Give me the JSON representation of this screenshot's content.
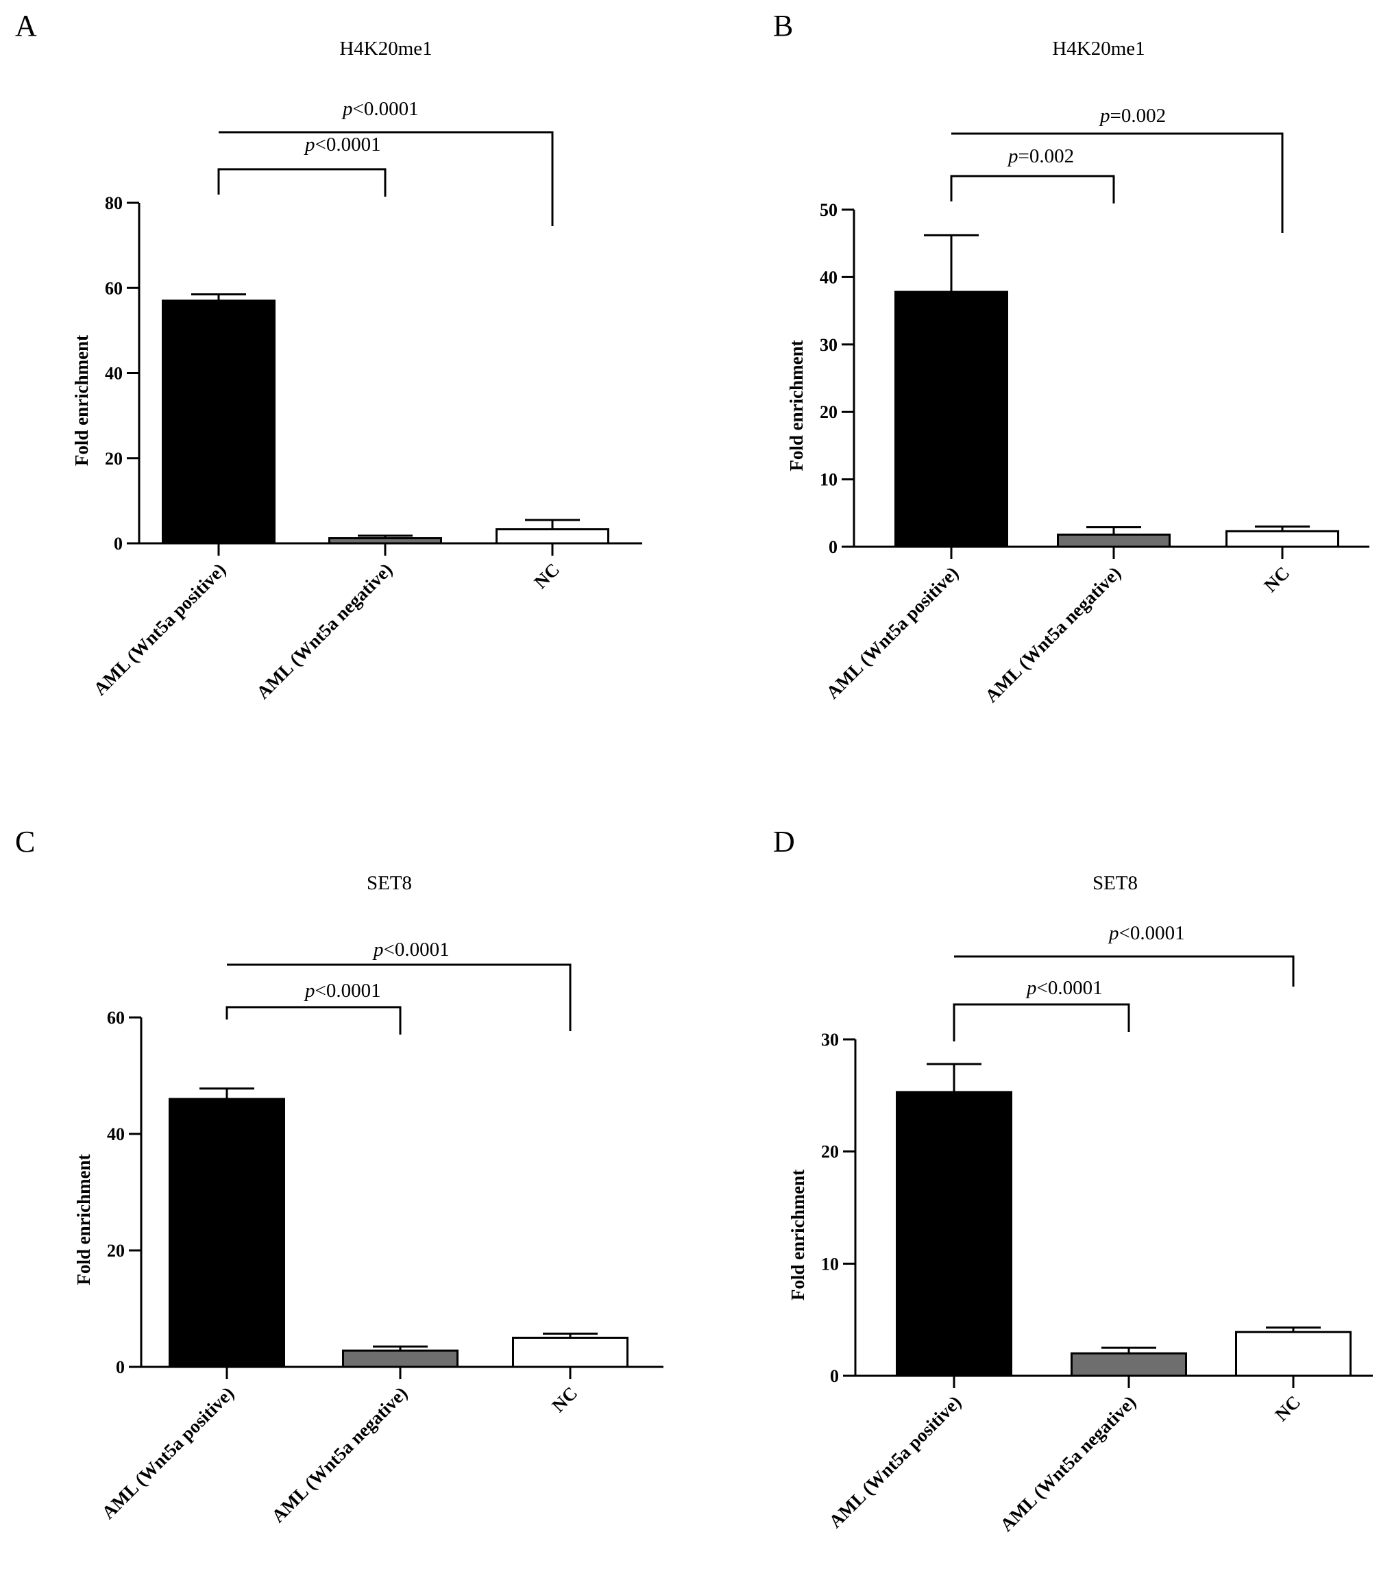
{
  "figure": {
    "colors": {
      "axis": "#000000",
      "bar_positive": "#000000",
      "bar_negative": "#6e6e6e",
      "bar_nc": "#ffffff",
      "background": "#ffffff"
    }
  },
  "chart_data": [
    {
      "panel_letter": "A",
      "type": "bar",
      "title": "H4K20me1",
      "xlabel": "",
      "ylabel": "Fold enrichment",
      "ylim": [
        0,
        80
      ],
      "yticks": [
        0,
        20,
        40,
        60,
        80
      ],
      "categories": [
        "AML (Wnt5a positive)",
        "AML  (Wnt5a negative)",
        "NC"
      ],
      "values": [
        57,
        1.2,
        3.3
      ],
      "errors": [
        1.5,
        0.6,
        2.2
      ],
      "bar_colors": [
        "#000000",
        "#6e6e6e",
        "#ffffff"
      ],
      "comparisons": [
        {
          "from": 0,
          "to": 1,
          "label_prefix": "p",
          "label_value": "<0.0001"
        },
        {
          "from": 0,
          "to": 2,
          "label_prefix": "p",
          "label_value": "<0.0001"
        }
      ]
    },
    {
      "panel_letter": "B",
      "type": "bar",
      "title": "H4K20me1",
      "xlabel": "",
      "ylabel": "Fold enrichment",
      "ylim": [
        0,
        50
      ],
      "yticks": [
        0,
        10,
        20,
        30,
        40,
        50
      ],
      "categories": [
        "AML (Wnt5a positive)",
        "AML (Wnt5a negative)",
        "NC"
      ],
      "values": [
        37.8,
        1.8,
        2.3
      ],
      "errors": [
        8.4,
        1.1,
        0.7
      ],
      "bar_colors": [
        "#000000",
        "#6e6e6e",
        "#ffffff"
      ],
      "comparisons": [
        {
          "from": 0,
          "to": 1,
          "label_prefix": "p",
          "label_value": "=0.002"
        },
        {
          "from": 0,
          "to": 2,
          "label_prefix": "p",
          "label_value": "=0.002"
        }
      ]
    },
    {
      "panel_letter": "C",
      "type": "bar",
      "title": "SET8",
      "xlabel": "",
      "ylabel": "Fold enrichment",
      "ylim": [
        0,
        60
      ],
      "yticks": [
        0,
        20,
        40,
        60
      ],
      "categories": [
        "AML  (Wnt5a positive)",
        "AML  (Wnt5a negative)",
        "NC"
      ],
      "values": [
        46,
        2.8,
        5
      ],
      "errors": [
        1.8,
        0.7,
        0.7
      ],
      "bar_colors": [
        "#000000",
        "#6e6e6e",
        "#ffffff"
      ],
      "comparisons": [
        {
          "from": 0,
          "to": 1,
          "label_prefix": "p",
          "label_value": "<0.0001"
        },
        {
          "from": 0,
          "to": 2,
          "label_prefix": "p",
          "label_value": "<0.0001"
        }
      ]
    },
    {
      "panel_letter": "D",
      "type": "bar",
      "title": "SET8",
      "xlabel": "",
      "ylabel": "Fold enrichment",
      "ylim": [
        0,
        30
      ],
      "yticks": [
        0,
        10,
        20,
        30
      ],
      "categories": [
        "AML (Wnt5a positive)",
        "AML (Wnt5a negative)",
        "NC"
      ],
      "values": [
        25.3,
        2,
        3.9
      ],
      "errors": [
        2.5,
        0.5,
        0.4
      ],
      "bar_colors": [
        "#000000",
        "#6e6e6e",
        "#ffffff"
      ],
      "comparisons": [
        {
          "from": 0,
          "to": 1,
          "label_prefix": "p",
          "label_value": "<0.0001"
        },
        {
          "from": 0,
          "to": 2,
          "label_prefix": "p",
          "label_value": "<0.0001"
        }
      ]
    }
  ]
}
